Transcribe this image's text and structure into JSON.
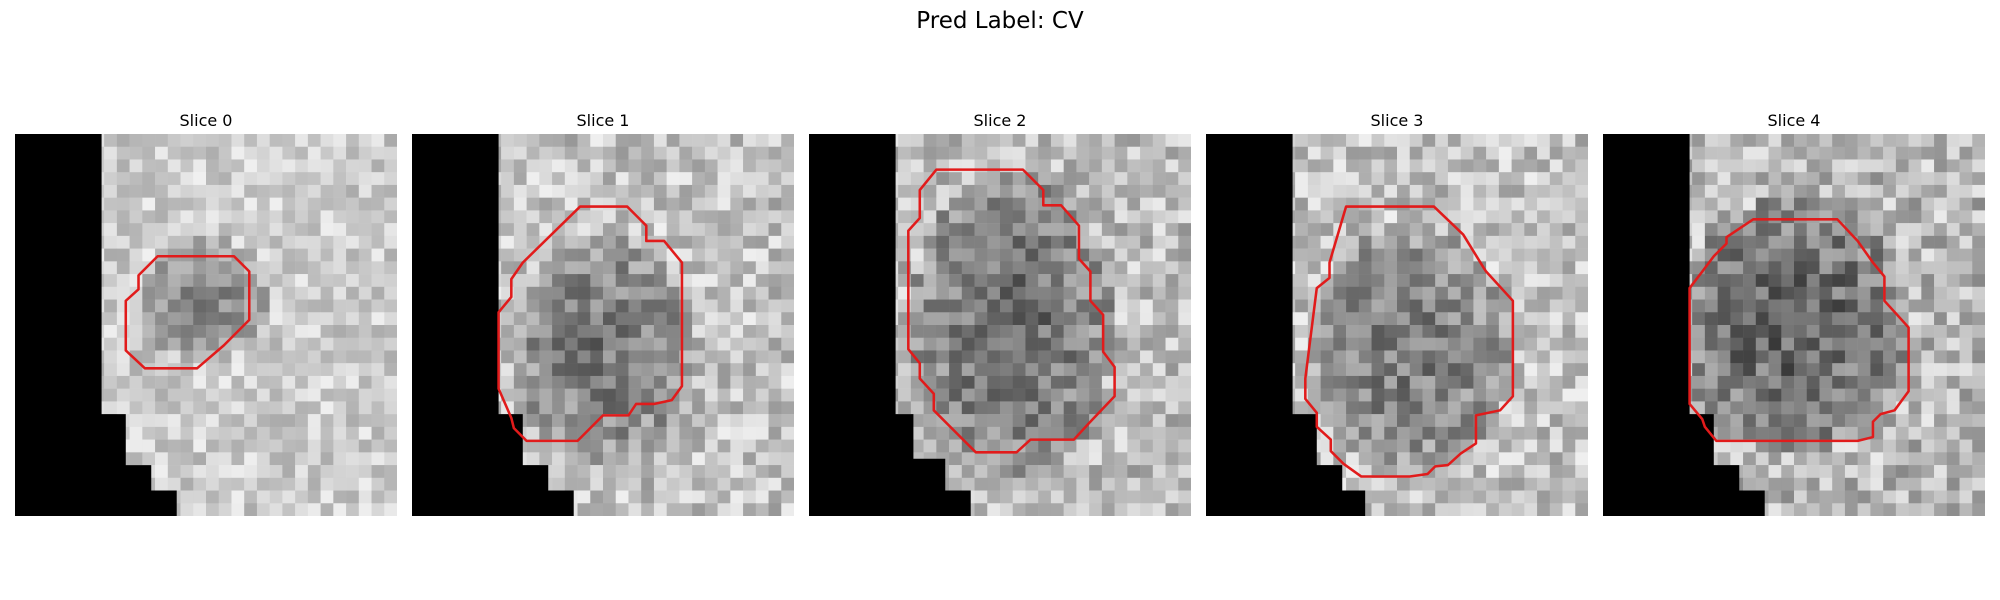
{
  "figure": {
    "title": "Pred Label: CV",
    "contour_color": "#e11b1b"
  },
  "slices": [
    {
      "title": "Slice 0"
    },
    {
      "title": "Slice 1"
    },
    {
      "title": "Slice 2"
    },
    {
      "title": "Slice 3"
    },
    {
      "title": "Slice 4"
    }
  ]
}
